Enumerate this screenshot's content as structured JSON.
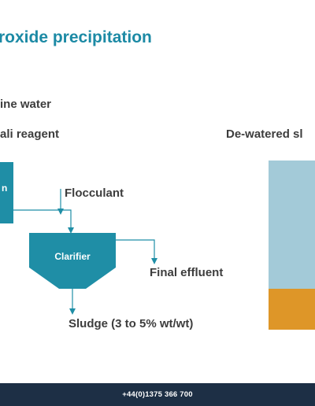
{
  "slide": {
    "title": "roxide precipitation",
    "labels": {
      "mine_water": "ine water",
      "alkali_reagent": "ali reagent",
      "dewatered": "De-watered sl",
      "flocculant": "Flocculant",
      "clarifier": "Clarifier",
      "final_effluent": "Final effluent",
      "sludge": "Sludge (3 to 5% wt/wt)",
      "reactor_partial": "n"
    },
    "colors": {
      "title": "#1c8aa5",
      "process": "#1f8ea6",
      "bar_water": "#a3cad8",
      "bar_sludge": "#de9628",
      "footer": "#1d2f45"
    }
  },
  "footer": {
    "phone": "+44(0)1375 366 700"
  }
}
